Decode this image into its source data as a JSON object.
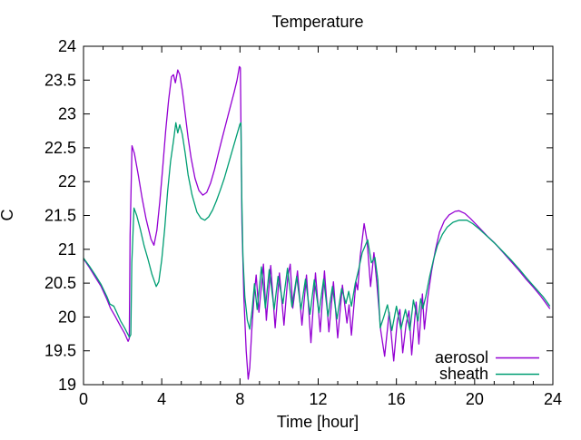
{
  "figure": {
    "background_color": "#ffffff",
    "border_color": "#000000",
    "text_color": "#000000"
  },
  "legend": {
    "entries": [
      {
        "label": "aerosol",
        "color": "#9400d3"
      },
      {
        "label": "sheath",
        "color": "#009e73"
      }
    ]
  },
  "chart_data": {
    "type": "line",
    "title": "Temperature",
    "xlabel": "Time [hour]",
    "ylabel": "C",
    "xlim": [
      0,
      24
    ],
    "ylim": [
      19,
      24
    ],
    "x_tick_labels": [
      "0",
      "4",
      "8",
      "12",
      "16",
      "20",
      "24"
    ],
    "x_minor_tick_step": 1,
    "y_tick_labels": [
      "19",
      "19.5",
      "20",
      "20.5",
      "21",
      "21.5",
      "22",
      "22.5",
      "23",
      "23.5",
      "24"
    ],
    "grid": false,
    "legend_position": "inside-bottom-right",
    "series": [
      {
        "name": "aerosol",
        "color": "#9400d3",
        "points": [
          [
            0,
            20.86
          ],
          [
            0.3,
            20.73
          ],
          [
            0.6,
            20.59
          ],
          [
            0.9,
            20.45
          ],
          [
            1.2,
            20.26
          ],
          [
            1.38,
            20.13
          ],
          [
            1.6,
            20.02
          ],
          [
            1.9,
            19.86
          ],
          [
            2.1,
            19.76
          ],
          [
            2.28,
            19.64
          ],
          [
            2.34,
            19.68
          ],
          [
            2.38,
            21.2
          ],
          [
            2.48,
            22.53
          ],
          [
            2.6,
            22.42
          ],
          [
            2.8,
            22.1
          ],
          [
            3.0,
            21.75
          ],
          [
            3.2,
            21.45
          ],
          [
            3.45,
            21.15
          ],
          [
            3.6,
            21.06
          ],
          [
            3.75,
            21.28
          ],
          [
            3.9,
            21.7
          ],
          [
            4.05,
            22.2
          ],
          [
            4.2,
            22.75
          ],
          [
            4.35,
            23.2
          ],
          [
            4.5,
            23.55
          ],
          [
            4.6,
            23.58
          ],
          [
            4.7,
            23.46
          ],
          [
            4.82,
            23.65
          ],
          [
            4.92,
            23.58
          ],
          [
            5.05,
            23.35
          ],
          [
            5.2,
            23.0
          ],
          [
            5.35,
            22.65
          ],
          [
            5.5,
            22.35
          ],
          [
            5.7,
            22.05
          ],
          [
            5.9,
            21.87
          ],
          [
            6.1,
            21.8
          ],
          [
            6.3,
            21.84
          ],
          [
            6.5,
            21.98
          ],
          [
            6.7,
            22.18
          ],
          [
            6.9,
            22.42
          ],
          [
            7.1,
            22.65
          ],
          [
            7.3,
            22.88
          ],
          [
            7.5,
            23.1
          ],
          [
            7.7,
            23.32
          ],
          [
            7.85,
            23.5
          ],
          [
            7.97,
            23.7
          ],
          [
            8.02,
            23.68
          ],
          [
            8.06,
            22.6
          ],
          [
            8.1,
            21.4
          ],
          [
            8.2,
            20.3
          ],
          [
            8.32,
            19.5
          ],
          [
            8.42,
            19.08
          ],
          [
            8.5,
            19.25
          ],
          [
            8.6,
            19.8
          ],
          [
            8.72,
            20.3
          ],
          [
            8.83,
            20.62
          ],
          [
            8.97,
            20.07
          ],
          [
            9.2,
            20.78
          ],
          [
            9.35,
            19.95
          ],
          [
            9.57,
            20.76
          ],
          [
            9.8,
            19.84
          ],
          [
            10.02,
            20.65
          ],
          [
            10.25,
            19.88
          ],
          [
            10.45,
            20.6
          ],
          [
            10.57,
            20.78
          ],
          [
            10.7,
            20.13
          ],
          [
            10.94,
            20.68
          ],
          [
            11.17,
            19.88
          ],
          [
            11.4,
            20.62
          ],
          [
            11.63,
            19.62
          ],
          [
            11.86,
            20.65
          ],
          [
            12.1,
            19.78
          ],
          [
            12.32,
            20.68
          ],
          [
            12.55,
            19.78
          ],
          [
            12.78,
            20.52
          ],
          [
            13.0,
            19.69
          ],
          [
            13.24,
            20.47
          ],
          [
            13.47,
            19.91
          ],
          [
            13.58,
            20.18
          ],
          [
            13.7,
            19.73
          ],
          [
            13.93,
            20.52
          ],
          [
            14.02,
            20.4
          ],
          [
            14.15,
            20.9
          ],
          [
            14.35,
            21.38
          ],
          [
            14.5,
            21.12
          ],
          [
            14.68,
            20.45
          ],
          [
            14.85,
            20.95
          ],
          [
            15.0,
            20.5
          ],
          [
            15.2,
            19.8
          ],
          [
            15.4,
            19.42
          ],
          [
            15.63,
            20.07
          ],
          [
            15.86,
            19.35
          ],
          [
            16.05,
            19.95
          ],
          [
            16.18,
            20.11
          ],
          [
            16.32,
            19.47
          ],
          [
            16.5,
            19.9
          ],
          [
            16.64,
            20.09
          ],
          [
            16.78,
            19.44
          ],
          [
            17.01,
            20.22
          ],
          [
            17.15,
            19.6
          ],
          [
            17.33,
            20.34
          ],
          [
            17.43,
            19.82
          ],
          [
            17.6,
            20.28
          ],
          [
            17.8,
            20.68
          ],
          [
            18.0,
            21.0
          ],
          [
            18.2,
            21.25
          ],
          [
            18.45,
            21.42
          ],
          [
            18.7,
            21.51
          ],
          [
            19.0,
            21.56
          ],
          [
            19.2,
            21.57
          ],
          [
            19.5,
            21.53
          ],
          [
            19.8,
            21.45
          ],
          [
            20.1,
            21.36
          ],
          [
            20.4,
            21.27
          ],
          [
            20.7,
            21.18
          ],
          [
            21.0,
            21.1
          ],
          [
            21.4,
            20.97
          ],
          [
            21.8,
            20.84
          ],
          [
            22.2,
            20.71
          ],
          [
            22.6,
            20.57
          ],
          [
            23.0,
            20.44
          ],
          [
            23.4,
            20.3
          ],
          [
            23.85,
            20.12
          ]
        ]
      },
      {
        "name": "sheath",
        "color": "#009e73",
        "points": [
          [
            0,
            20.87
          ],
          [
            0.3,
            20.75
          ],
          [
            0.6,
            20.62
          ],
          [
            0.9,
            20.48
          ],
          [
            1.2,
            20.3
          ],
          [
            1.35,
            20.19
          ],
          [
            1.55,
            20.16
          ],
          [
            1.9,
            19.94
          ],
          [
            2.1,
            19.84
          ],
          [
            2.35,
            19.7
          ],
          [
            2.42,
            19.74
          ],
          [
            2.47,
            20.8
          ],
          [
            2.58,
            21.61
          ],
          [
            2.72,
            21.5
          ],
          [
            2.9,
            21.3
          ],
          [
            3.1,
            21.05
          ],
          [
            3.3,
            20.85
          ],
          [
            3.5,
            20.63
          ],
          [
            3.72,
            20.45
          ],
          [
            3.85,
            20.52
          ],
          [
            4.0,
            20.85
          ],
          [
            4.15,
            21.3
          ],
          [
            4.3,
            21.85
          ],
          [
            4.45,
            22.3
          ],
          [
            4.6,
            22.6
          ],
          [
            4.72,
            22.87
          ],
          [
            4.82,
            22.72
          ],
          [
            4.92,
            22.84
          ],
          [
            5.05,
            22.7
          ],
          [
            5.2,
            22.42
          ],
          [
            5.35,
            22.1
          ],
          [
            5.55,
            21.8
          ],
          [
            5.8,
            21.55
          ],
          [
            6.0,
            21.46
          ],
          [
            6.2,
            21.43
          ],
          [
            6.4,
            21.48
          ],
          [
            6.6,
            21.58
          ],
          [
            6.8,
            21.72
          ],
          [
            7.0,
            21.88
          ],
          [
            7.2,
            22.05
          ],
          [
            7.4,
            22.25
          ],
          [
            7.6,
            22.45
          ],
          [
            7.8,
            22.65
          ],
          [
            8.0,
            22.85
          ],
          [
            8.05,
            22.87
          ],
          [
            8.09,
            21.8
          ],
          [
            8.15,
            20.9
          ],
          [
            8.25,
            20.3
          ],
          [
            8.38,
            19.95
          ],
          [
            8.5,
            19.82
          ],
          [
            8.62,
            20.1
          ],
          [
            8.74,
            20.49
          ],
          [
            8.88,
            20.11
          ],
          [
            9.1,
            20.74
          ],
          [
            9.3,
            20.13
          ],
          [
            9.5,
            20.7
          ],
          [
            9.75,
            20.11
          ],
          [
            9.95,
            20.6
          ],
          [
            10.2,
            20.2
          ],
          [
            10.43,
            20.72
          ],
          [
            10.66,
            20.15
          ],
          [
            10.9,
            20.6
          ],
          [
            11.12,
            20.11
          ],
          [
            11.35,
            20.56
          ],
          [
            11.58,
            20.04
          ],
          [
            11.8,
            20.55
          ],
          [
            12.04,
            20.06
          ],
          [
            12.28,
            20.56
          ],
          [
            12.5,
            20.01
          ],
          [
            12.73,
            20.45
          ],
          [
            12.96,
            19.97
          ],
          [
            13.2,
            20.42
          ],
          [
            13.42,
            20.2
          ],
          [
            13.56,
            20.38
          ],
          [
            13.7,
            20.16
          ],
          [
            13.9,
            20.5
          ],
          [
            14.05,
            20.68
          ],
          [
            14.25,
            20.95
          ],
          [
            14.53,
            21.14
          ],
          [
            14.72,
            20.8
          ],
          [
            14.9,
            20.88
          ],
          [
            15.05,
            20.55
          ],
          [
            15.17,
            19.84
          ],
          [
            15.35,
            20.0
          ],
          [
            15.54,
            20.18
          ],
          [
            15.77,
            19.8
          ],
          [
            16.0,
            20.16
          ],
          [
            16.23,
            19.82
          ],
          [
            16.46,
            20.11
          ],
          [
            16.69,
            19.8
          ],
          [
            16.87,
            20.25
          ],
          [
            17.1,
            19.94
          ],
          [
            17.24,
            20.27
          ],
          [
            17.35,
            20.12
          ],
          [
            17.5,
            20.3
          ],
          [
            17.7,
            20.6
          ],
          [
            17.9,
            20.85
          ],
          [
            18.1,
            21.06
          ],
          [
            18.35,
            21.22
          ],
          [
            18.6,
            21.33
          ],
          [
            18.9,
            21.4
          ],
          [
            19.2,
            21.43
          ],
          [
            19.6,
            21.43
          ],
          [
            19.9,
            21.38
          ],
          [
            20.2,
            21.31
          ],
          [
            20.5,
            21.23
          ],
          [
            20.8,
            21.15
          ],
          [
            21.1,
            21.07
          ],
          [
            21.5,
            20.95
          ],
          [
            21.9,
            20.83
          ],
          [
            22.3,
            20.7
          ],
          [
            22.7,
            20.56
          ],
          [
            23.1,
            20.43
          ],
          [
            23.5,
            20.3
          ],
          [
            23.85,
            20.16
          ]
        ]
      }
    ]
  }
}
